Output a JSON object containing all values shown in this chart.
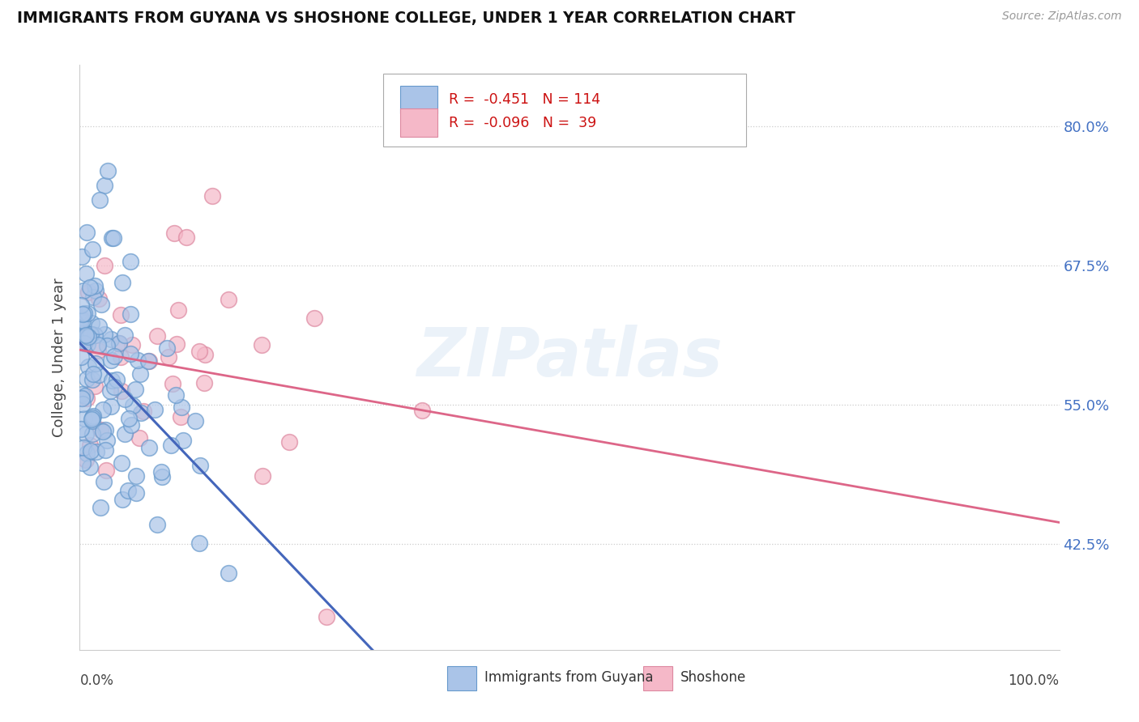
{
  "title": "IMMIGRANTS FROM GUYANA VS SHOSHONE COLLEGE, UNDER 1 YEAR CORRELATION CHART",
  "source_text": "Source: ZipAtlas.com",
  "ylabel": "College, Under 1 year",
  "yticks": [
    0.425,
    0.55,
    0.675,
    0.8
  ],
  "ytick_labels": [
    "42.5%",
    "55.0%",
    "67.5%",
    "80.0%"
  ],
  "watermark": "ZIPatlas",
  "xmin": 0.0,
  "xmax": 1.0,
  "ymin": 0.33,
  "ymax": 0.855,
  "blue_color": "#aac4e8",
  "blue_edge": "#6699cc",
  "blue_line_color": "#4466bb",
  "pink_color": "#f5b8c8",
  "pink_edge": "#dd88a0",
  "pink_line_color": "#dd6688",
  "grey_dash_color": "#bbbbbb",
  "legend_r1": "R =  -0.451   N = 114",
  "legend_r2": "R =  -0.096   N =  39",
  "bottom_label1": "Immigrants from Guyana",
  "bottom_label2": "Shoshone"
}
